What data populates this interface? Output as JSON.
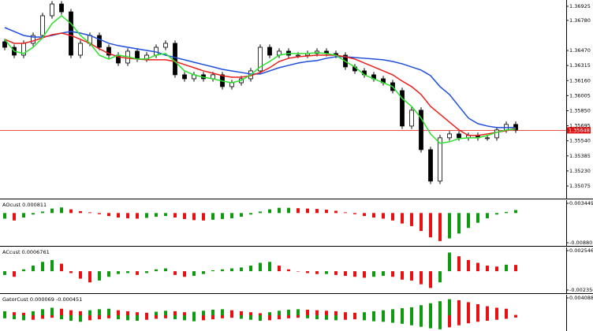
{
  "chart_data": [
    {
      "type": "candlestick",
      "open": [
        1.3656,
        1.36503,
        1.36422,
        1.36544,
        1.36625,
        1.36828,
        1.36949,
        1.36868,
        1.36422,
        1.36544,
        1.36625,
        1.36503,
        1.36422,
        1.36341,
        1.36463,
        1.36382,
        1.36422,
        1.36503,
        1.36544,
        1.3622,
        1.36179,
        1.3622,
        1.36179,
        1.3622,
        1.36098,
        1.36138,
        1.36179,
        1.3626,
        1.36503,
        1.36422,
        1.36463,
        1.36422,
        1.36422,
        1.36439,
        1.36463,
        1.36439,
        1.36422,
        1.36301,
        1.3626,
        1.3622,
        1.36179,
        1.36138,
        1.36057,
        1.35692,
        1.35855,
        1.35449,
        1.35125,
        1.35571,
        1.35611,
        1.35571,
        1.35595,
        1.35571,
        1.35571,
        1.35652,
        1.35709
      ],
      "high": [
        1.3659,
        1.36533,
        1.36574,
        1.36655,
        1.36858,
        1.36979,
        1.36979,
        1.36898,
        1.36574,
        1.36655,
        1.36655,
        1.36533,
        1.36452,
        1.36493,
        1.36493,
        1.36452,
        1.36533,
        1.36574,
        1.36574,
        1.3625,
        1.3625,
        1.3625,
        1.3625,
        1.3625,
        1.36168,
        1.36209,
        1.3629,
        1.36533,
        1.36533,
        1.36493,
        1.36493,
        1.36452,
        1.36469,
        1.36493,
        1.36493,
        1.36469,
        1.36452,
        1.36331,
        1.3629,
        1.3625,
        1.36209,
        1.36168,
        1.36087,
        1.35885,
        1.35885,
        1.35479,
        1.35601,
        1.35641,
        1.35641,
        1.35625,
        1.35625,
        1.35601,
        1.35682,
        1.35739,
        1.35739
      ],
      "low": [
        1.36473,
        1.36392,
        1.36392,
        1.36514,
        1.36595,
        1.36798,
        1.36838,
        1.36392,
        1.36392,
        1.36514,
        1.36473,
        1.36392,
        1.36311,
        1.36311,
        1.36352,
        1.36352,
        1.36392,
        1.36473,
        1.3619,
        1.36149,
        1.36149,
        1.36149,
        1.36149,
        1.36068,
        1.36068,
        1.36108,
        1.36149,
        1.3623,
        1.36392,
        1.36392,
        1.36392,
        1.36392,
        1.36392,
        1.36409,
        1.36409,
        1.36392,
        1.36271,
        1.3623,
        1.3619,
        1.36149,
        1.36108,
        1.36027,
        1.35662,
        1.35662,
        1.35419,
        1.35095,
        1.35095,
        1.35541,
        1.35541,
        1.35541,
        1.35541,
        1.35541,
        1.35541,
        1.35622,
        1.35622
      ],
      "close": [
        1.36503,
        1.36422,
        1.36544,
        1.36625,
        1.36828,
        1.36949,
        1.36868,
        1.36422,
        1.36544,
        1.36625,
        1.36503,
        1.36422,
        1.36341,
        1.36463,
        1.36382,
        1.36422,
        1.36503,
        1.36544,
        1.3622,
        1.36179,
        1.3622,
        1.36179,
        1.3622,
        1.36098,
        1.36138,
        1.36179,
        1.3626,
        1.36503,
        1.36422,
        1.36463,
        1.36422,
        1.36422,
        1.36439,
        1.36463,
        1.36439,
        1.36422,
        1.36301,
        1.3626,
        1.3622,
        1.36179,
        1.36138,
        1.36057,
        1.35692,
        1.35855,
        1.35449,
        1.35125,
        1.35571,
        1.35611,
        1.35571,
        1.35595,
        1.35571,
        1.35571,
        1.35652,
        1.35709,
        1.35652
      ],
      "up_color": "#ffffff",
      "down_color": "#000000",
      "overlays": [
        {
          "color": "#1f4fd8",
          "values": [
            1.36706,
            1.36666,
            1.36625,
            1.36609,
            1.36609,
            1.36625,
            1.36649,
            1.36666,
            1.36649,
            1.36625,
            1.36585,
            1.36544,
            1.3652,
            1.36503,
            1.36487,
            1.36471,
            1.36455,
            1.36422,
            1.36398,
            1.36374,
            1.36349,
            1.36325,
            1.36301,
            1.36276,
            1.3626,
            1.36244,
            1.36228,
            1.36228,
            1.3626,
            1.36293,
            1.36317,
            1.36341,
            1.36357,
            1.36366,
            1.3639,
            1.36406,
            1.36406,
            1.36398,
            1.3639,
            1.36382,
            1.36374,
            1.36357,
            1.36333,
            1.36301,
            1.36268,
            1.36211,
            1.36098,
            1.36017,
            1.35895,
            1.35774,
            1.35717,
            1.35692,
            1.35676,
            1.35676,
            1.35676
          ]
        },
        {
          "color": "#e8201e",
          "values": [
            1.36585,
            1.36544,
            1.36544,
            1.36568,
            1.36601,
            1.36633,
            1.36649,
            1.36625,
            1.36585,
            1.36544,
            1.36487,
            1.36439,
            1.36406,
            1.3639,
            1.36382,
            1.36374,
            1.36374,
            1.36374,
            1.36357,
            1.36325,
            1.36293,
            1.3626,
            1.36236,
            1.36211,
            1.36195,
            1.36195,
            1.36211,
            1.36244,
            1.36293,
            1.36357,
            1.3639,
            1.36406,
            1.36414,
            1.36422,
            1.36422,
            1.36422,
            1.36406,
            1.36382,
            1.36341,
            1.36301,
            1.3626,
            1.3622,
            1.36155,
            1.36098,
            1.36017,
            1.35895,
            1.35814,
            1.35733,
            1.35652,
            1.35595,
            1.35595,
            1.35611,
            1.35628,
            1.35644,
            1.35668
          ]
        },
        {
          "color": "#2ee02e",
          "values": [
            1.36585,
            1.36463,
            1.36439,
            1.36503,
            1.36601,
            1.36747,
            1.36828,
            1.36747,
            1.36625,
            1.36544,
            1.36422,
            1.36382,
            1.36422,
            1.36406,
            1.36382,
            1.36382,
            1.36422,
            1.36439,
            1.36357,
            1.3626,
            1.3622,
            1.36195,
            1.36179,
            1.36155,
            1.36138,
            1.36163,
            1.3622,
            1.36301,
            1.36357,
            1.36422,
            1.36439,
            1.36439,
            1.36439,
            1.36447,
            1.36439,
            1.36422,
            1.36357,
            1.36301,
            1.3622,
            1.36179,
            1.36138,
            1.36098,
            1.35976,
            1.35895,
            1.35774,
            1.35611,
            1.35514,
            1.3553,
            1.35563,
            1.35571,
            1.35571,
            1.35595,
            1.35628,
            1.35652,
            1.3566
          ]
        }
      ],
      "current_price": 1.35648,
      "current_price_color": "#e01010",
      "ylim": [
        1.34945,
        1.3699
      ],
      "yticks": [
        1.36925,
        {
          "value": 1.3678,
          "label": "1.36780"
        },
        {
          "value": 1.3647,
          "label": "1.36470"
        },
        1.36315,
        {
          "value": 1.3616,
          "label": "1.36160"
        },
        1.36005,
        {
          "value": 1.3585,
          "label": "1.35850"
        },
        1.35695,
        {
          "value": 1.3554,
          "label": "1.35540"
        },
        1.35385,
        {
          "value": 1.3523,
          "label": "1.35230"
        },
        1.35075
      ]
    },
    {
      "type": "bar",
      "title": "AOcust 0.000811",
      "up_color": "#109a10",
      "down_color": "#e81010",
      "values": [
        -0.0015,
        -0.002,
        -0.0012,
        -0.0004,
        0.0004,
        0.0012,
        0.0015,
        0.001,
        0.0005,
        0.0002,
        -0.0003,
        -0.0008,
        -0.0012,
        -0.0014,
        -0.0015,
        -0.0013,
        -0.001,
        -0.0008,
        -0.0012,
        -0.0016,
        -0.0019,
        -0.002,
        -0.0018,
        -0.0016,
        -0.0014,
        -0.001,
        -0.0004,
        0.0004,
        0.001,
        0.0014,
        0.0014,
        0.0013,
        0.0012,
        0.0011,
        0.0009,
        0.0006,
        0.0002,
        -0.0003,
        -0.0008,
        -0.0012,
        -0.0015,
        -0.002,
        -0.0028,
        -0.0035,
        -0.0048,
        -0.0065,
        -0.0075,
        -0.0068,
        -0.0055,
        -0.004,
        -0.0026,
        -0.0014,
        -0.0004,
        0.0003,
        0.000811
      ],
      "ylim": [
        -0.008801,
        0.003449
      ],
      "yticks": [
        0.003449,
        -0.008801
      ]
    },
    {
      "type": "bar",
      "title": "ACcust 0.0006761",
      "up_color": "#109a10",
      "down_color": "#e81010",
      "values": [
        -0.0004,
        -0.0006,
        0.0002,
        0.0006,
        0.001,
        0.0012,
        0.0008,
        -0.0002,
        -0.0008,
        -0.0012,
        -0.001,
        -0.0006,
        -0.0003,
        -0.0002,
        -0.0004,
        -0.0002,
        0.0002,
        0.0003,
        -0.0004,
        -0.0006,
        -0.0005,
        -0.0003,
        0.0001,
        0.0002,
        0.0003,
        0.0004,
        0.0006,
        0.0009,
        0.001,
        0.0006,
        0.0002,
        0,
        -0.0002,
        -0.0003,
        -0.0003,
        -0.0004,
        -0.0005,
        -0.0006,
        -0.0007,
        -0.0006,
        -0.0005,
        -0.0006,
        -0.0009,
        -0.001,
        -0.0014,
        -0.0018,
        -0.0012,
        0.002,
        0.0016,
        0.0012,
        0.0009,
        0.0006,
        0.0005,
        0.0007,
        0.0006761
      ],
      "ylim": [
        -0.0023561,
        0.0025465
      ],
      "yticks": [
        0.0025465,
        -0.0023561
      ]
    },
    {
      "type": "bar",
      "title": "GatorCust 0.000069 -0.000451",
      "up_color": "#109a10",
      "down_color": "#e81010",
      "series": [
        {
          "values": [
            0.0008,
            0.0006,
            0.0005,
            0.0008,
            0.0012,
            0.0015,
            0.0013,
            0.001,
            0.0008,
            0.001,
            0.0012,
            0.0013,
            0.001,
            0.0008,
            0.0006,
            0.0005,
            0.0007,
            0.0009,
            0.0008,
            0.0006,
            0.0007,
            0.0009,
            0.0011,
            0.0012,
            0.001,
            0.0008,
            0.0006,
            0.0004,
            0.0006,
            0.0009,
            0.0011,
            0.0012,
            0.0011,
            0.001,
            0.0009,
            0.0008,
            0.0006,
            0.0005,
            0.0006,
            0.0008,
            0.001,
            0.0012,
            0.0014,
            0.0016,
            0.002,
            0.0024,
            0.0028,
            0.0032,
            0.003,
            0.0026,
            0.0022,
            0.0018,
            0.0015,
            0.0013,
            6.9e-05
          ]
        },
        {
          "values": [
            -0.0006,
            -0.0008,
            -0.001,
            -0.0009,
            -0.0007,
            -0.0005,
            -0.0008,
            -0.0011,
            -0.0013,
            -0.001,
            -0.0008,
            -0.0006,
            -0.0008,
            -0.001,
            -0.0011,
            -0.0009,
            -0.0007,
            -0.0006,
            -0.0008,
            -0.001,
            -0.0012,
            -0.001,
            -0.0008,
            -0.0006,
            -0.0005,
            -0.0007,
            -0.0009,
            -0.0011,
            -0.001,
            -0.0008,
            -0.0006,
            -0.0005,
            -0.0006,
            -0.0008,
            -0.0009,
            -0.001,
            -0.0009,
            -0.0008,
            -0.001,
            -0.0012,
            -0.0013,
            -0.0015,
            -0.0017,
            -0.002,
            -0.0023,
            -0.0026,
            -0.0028,
            -0.0024,
            -0.002,
            -0.0016,
            -0.0013,
            -0.0011,
            -0.0009,
            -0.0007,
            -0.000451
          ]
        }
      ],
      "ylim": [
        -0.00314,
        0.004088
      ],
      "yticks": [
        0.004088
      ]
    }
  ]
}
